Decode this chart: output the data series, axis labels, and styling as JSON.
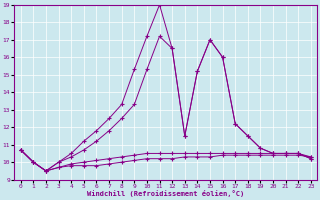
{
  "xlabel": "Windchill (Refroidissement éolien,°C)",
  "xlim": [
    -0.5,
    23.5
  ],
  "ylim": [
    9,
    19
  ],
  "xticks": [
    0,
    1,
    2,
    3,
    4,
    5,
    6,
    7,
    8,
    9,
    10,
    11,
    12,
    13,
    14,
    15,
    16,
    17,
    18,
    19,
    20,
    21,
    22,
    23
  ],
  "yticks": [
    9,
    10,
    11,
    12,
    13,
    14,
    15,
    16,
    17,
    18,
    19
  ],
  "bg_color": "#cce8ee",
  "line_color": "#880088",
  "series": [
    {
      "x": [
        0,
        1,
        2,
        3,
        4,
        5,
        6,
        7,
        8,
        9,
        10,
        11,
        12,
        13,
        14,
        15,
        16,
        17,
        18,
        19,
        20,
        21,
        22,
        23
      ],
      "y": [
        10.7,
        10.0,
        9.5,
        9.7,
        9.8,
        9.8,
        9.8,
        9.9,
        10.0,
        10.1,
        10.2,
        10.2,
        10.2,
        10.3,
        10.3,
        10.3,
        10.4,
        10.4,
        10.4,
        10.4,
        10.4,
        10.4,
        10.4,
        10.3
      ]
    },
    {
      "x": [
        0,
        1,
        2,
        3,
        4,
        5,
        6,
        7,
        8,
        9,
        10,
        11,
        12,
        13,
        14,
        15,
        16,
        17,
        18,
        19,
        20,
        21,
        22,
        23
      ],
      "y": [
        10.7,
        10.0,
        9.5,
        9.7,
        9.9,
        10.0,
        10.1,
        10.2,
        10.3,
        10.4,
        10.5,
        10.5,
        10.5,
        10.5,
        10.5,
        10.5,
        10.5,
        10.5,
        10.5,
        10.5,
        10.5,
        10.5,
        10.5,
        10.3
      ]
    },
    {
      "x": [
        0,
        1,
        2,
        3,
        4,
        5,
        6,
        7,
        8,
        9,
        10,
        11,
        12,
        13,
        14,
        15,
        16,
        17,
        18,
        19,
        20,
        21,
        22,
        23
      ],
      "y": [
        10.7,
        10.0,
        9.5,
        10.0,
        10.3,
        10.7,
        11.2,
        11.8,
        12.5,
        13.3,
        15.3,
        17.2,
        16.5,
        11.5,
        15.2,
        17.0,
        16.0,
        12.2,
        11.5,
        10.8,
        10.5,
        10.5,
        10.5,
        10.2
      ]
    },
    {
      "x": [
        0,
        1,
        2,
        3,
        4,
        5,
        6,
        7,
        8,
        9,
        10,
        11,
        12,
        13,
        14,
        15,
        16,
        17,
        18,
        19,
        20,
        21,
        22,
        23
      ],
      "y": [
        10.7,
        10.0,
        9.5,
        10.0,
        10.5,
        11.2,
        11.8,
        12.5,
        13.3,
        15.3,
        17.2,
        19.0,
        16.5,
        11.5,
        15.2,
        17.0,
        16.0,
        12.2,
        11.5,
        10.8,
        10.5,
        10.5,
        10.5,
        10.2
      ]
    }
  ]
}
